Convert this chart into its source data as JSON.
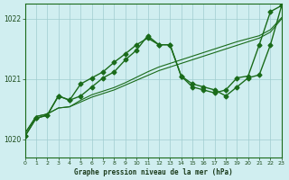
{
  "title": "Graphe pression niveau de la mer (hPa)",
  "bg_color": "#d0eef0",
  "grid_color": "#a0ccd0",
  "line_color": "#1a6b1a",
  "xlim": [
    0,
    23
  ],
  "ylim": [
    1019.7,
    1022.25
  ],
  "yticks": [
    1020,
    1021,
    1022
  ],
  "xticks": [
    0,
    1,
    2,
    3,
    4,
    5,
    6,
    7,
    8,
    9,
    10,
    11,
    12,
    13,
    14,
    15,
    16,
    17,
    18,
    19,
    20,
    21,
    22,
    23
  ],
  "series1_x": [
    0,
    1,
    2,
    3,
    4,
    5,
    6,
    7,
    8,
    9,
    10,
    11,
    12,
    13,
    14,
    15,
    16,
    17,
    18,
    19,
    20,
    21,
    22,
    23
  ],
  "series1_y": [
    1020.1,
    1020.38,
    1020.42,
    1020.52,
    1020.54,
    1020.62,
    1020.7,
    1020.76,
    1020.82,
    1020.9,
    1020.98,
    1021.06,
    1021.14,
    1021.2,
    1021.26,
    1021.32,
    1021.38,
    1021.44,
    1021.5,
    1021.56,
    1021.62,
    1021.68,
    1021.78,
    1022.0
  ],
  "series2_x": [
    0,
    1,
    2,
    3,
    4,
    5,
    6,
    7,
    8,
    9,
    10,
    11,
    12,
    13,
    14,
    15,
    16,
    17,
    18,
    19,
    20,
    21,
    22,
    23
  ],
  "series2_y": [
    1020.1,
    1020.38,
    1020.42,
    1020.52,
    1020.54,
    1020.65,
    1020.74,
    1020.8,
    1020.86,
    1020.94,
    1021.03,
    1021.12,
    1021.2,
    1021.26,
    1021.32,
    1021.38,
    1021.44,
    1021.5,
    1021.56,
    1021.62,
    1021.67,
    1021.72,
    1021.82,
    1022.02
  ],
  "series3_x": [
    0,
    1,
    2,
    3,
    4,
    5,
    6,
    7,
    8,
    9,
    10,
    11,
    12,
    13,
    14,
    15,
    16,
    17,
    18,
    19,
    20,
    21,
    22,
    23
  ],
  "series3_y": [
    1020.05,
    1020.35,
    1020.4,
    1020.72,
    1020.65,
    1020.92,
    1021.02,
    1021.12,
    1021.28,
    1021.42,
    1021.57,
    1021.68,
    1021.57,
    1021.57,
    1021.05,
    1020.87,
    1020.82,
    1020.77,
    1020.82,
    1021.02,
    1021.05,
    1021.57,
    1022.12,
    1022.22
  ],
  "series4_x": [
    0,
    1,
    2,
    3,
    4,
    5,
    6,
    7,
    8,
    9,
    10,
    11,
    12,
    13,
    14,
    15,
    16,
    17,
    18,
    19,
    20,
    21,
    22,
    23
  ],
  "series4_y": [
    1020.05,
    1020.35,
    1020.4,
    1020.72,
    1020.65,
    1020.72,
    1020.87,
    1021.02,
    1021.12,
    1021.32,
    1021.48,
    1021.72,
    1021.57,
    1021.57,
    1021.05,
    1020.92,
    1020.87,
    1020.82,
    1020.72,
    1020.87,
    1021.02,
    1021.07,
    1021.57,
    1022.22
  ]
}
